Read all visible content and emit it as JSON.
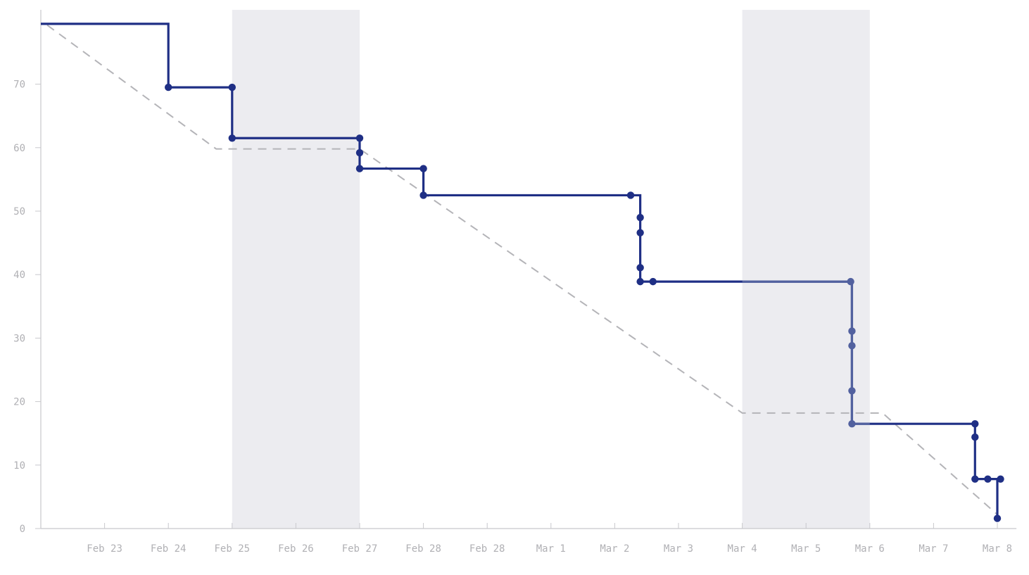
{
  "chart_data": {
    "type": "line",
    "title": "",
    "xlabel": "",
    "ylabel": "",
    "ylim": [
      0,
      80
    ],
    "yticks": [
      0,
      10,
      20,
      30,
      40,
      50,
      60,
      70
    ],
    "xlim": [
      0,
      15.3
    ],
    "x_tick_labels": [
      {
        "x": 1,
        "label": "Feb 23"
      },
      {
        "x": 2,
        "label": "Feb 24"
      },
      {
        "x": 3,
        "label": "Feb 25"
      },
      {
        "x": 4,
        "label": "Feb 26"
      },
      {
        "x": 5,
        "label": "Feb 27"
      },
      {
        "x": 6,
        "label": "Feb 28"
      },
      {
        "x": 7,
        "label": "Feb 28"
      },
      {
        "x": 8,
        "label": "Mar 1"
      },
      {
        "x": 9,
        "label": "Mar 2"
      },
      {
        "x": 10,
        "label": "Mar 3"
      },
      {
        "x": 11,
        "label": "Mar 4"
      },
      {
        "x": 12,
        "label": "Mar 5"
      },
      {
        "x": 13,
        "label": "Mar 6"
      },
      {
        "x": 14,
        "label": "Mar 7"
      },
      {
        "x": 15,
        "label": "Mar 8"
      }
    ],
    "shaded_ranges": [
      [
        3,
        5
      ],
      [
        11,
        13
      ]
    ],
    "grid": false,
    "series": [
      {
        "kind": "step",
        "color": "#1f2f85",
        "faded_color": "#52619f",
        "start": {
          "x": 0,
          "y": 79.5
        },
        "points": [
          {
            "x": 2.0,
            "y": 69.5
          },
          {
            "x": 3.0,
            "y": 69.5
          },
          {
            "x": 3.0,
            "y": 61.5
          },
          {
            "x": 5.0,
            "y": 61.5
          },
          {
            "x": 5.0,
            "y": 59.2
          },
          {
            "x": 5.0,
            "y": 56.7
          },
          {
            "x": 6.0,
            "y": 56.7
          },
          {
            "x": 6.0,
            "y": 52.5
          },
          {
            "x": 9.25,
            "y": 52.5
          },
          {
            "x": 9.4,
            "y": 49.0
          },
          {
            "x": 9.4,
            "y": 46.6
          },
          {
            "x": 9.4,
            "y": 41.1
          },
          {
            "x": 9.4,
            "y": 38.9
          },
          {
            "x": 9.6,
            "y": 38.9
          },
          {
            "x": 12.7,
            "y": 38.9
          },
          {
            "x": 12.72,
            "y": 31.1
          },
          {
            "x": 12.72,
            "y": 28.8
          },
          {
            "x": 12.72,
            "y": 21.7
          },
          {
            "x": 12.72,
            "y": 16.5
          },
          {
            "x": 14.65,
            "y": 16.5
          },
          {
            "x": 14.65,
            "y": 14.4
          },
          {
            "x": 14.65,
            "y": 7.8
          },
          {
            "x": 14.85,
            "y": 7.8
          },
          {
            "x": 15.05,
            "y": 7.8
          },
          {
            "x": 15.0,
            "y": 1.6
          }
        ]
      },
      {
        "kind": "ideal",
        "color": "#b4b4b8",
        "dashed": true,
        "points": [
          {
            "x": 0.1,
            "y": 79.3
          },
          {
            "x": 2.75,
            "y": 59.8
          },
          {
            "x": 5.0,
            "y": 59.8
          },
          {
            "x": 11.0,
            "y": 18.2
          },
          {
            "x": 13.2,
            "y": 18.2
          },
          {
            "x": 15.0,
            "y": 2.2
          }
        ]
      }
    ]
  }
}
